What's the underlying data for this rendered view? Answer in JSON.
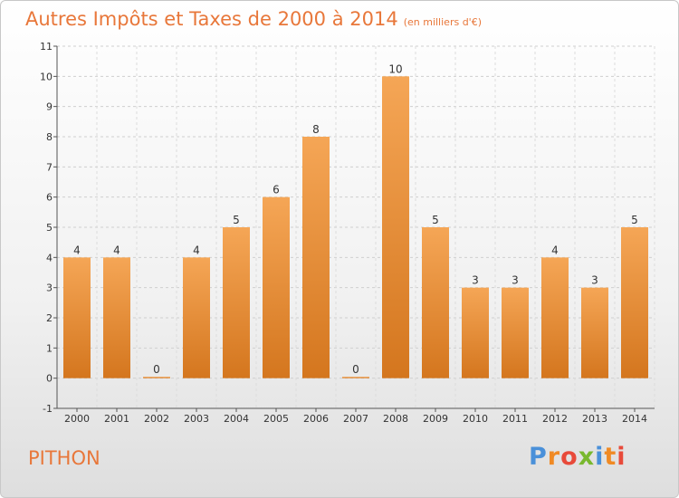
{
  "header": {
    "title": "Autres Impôts et Taxes de 2000 à 2014",
    "subtitle": "(en milliers d'€)"
  },
  "footer": {
    "place": "PITHON",
    "logo_letters": [
      {
        "ch": "P",
        "color": "#4a90d9"
      },
      {
        "ch": "r",
        "color": "#f08a24"
      },
      {
        "ch": "o",
        "color": "#e84a3a"
      },
      {
        "ch": "x",
        "color": "#79b82e"
      },
      {
        "ch": "i",
        "color": "#4a90d9"
      },
      {
        "ch": "t",
        "color": "#f08a24"
      },
      {
        "ch": "i",
        "color": "#e84a3a"
      }
    ]
  },
  "chart_data": {
    "type": "bar",
    "categories": [
      "2000",
      "2001",
      "2002",
      "2003",
      "2004",
      "2005",
      "2006",
      "2007",
      "2008",
      "2009",
      "2010",
      "2011",
      "2012",
      "2013",
      "2014"
    ],
    "values": [
      4,
      4,
      0,
      4,
      5,
      6,
      8,
      0,
      10,
      5,
      3,
      3,
      4,
      3,
      5
    ],
    "ylim": [
      -1,
      11
    ],
    "yticks": [
      "-1",
      "0",
      "1",
      "2",
      "3",
      "4",
      "5",
      "6",
      "7",
      "8",
      "9",
      "10",
      "11"
    ],
    "grid": true,
    "bar_color_light": "#f5a656",
    "bar_color_dark": "#d4761e"
  }
}
